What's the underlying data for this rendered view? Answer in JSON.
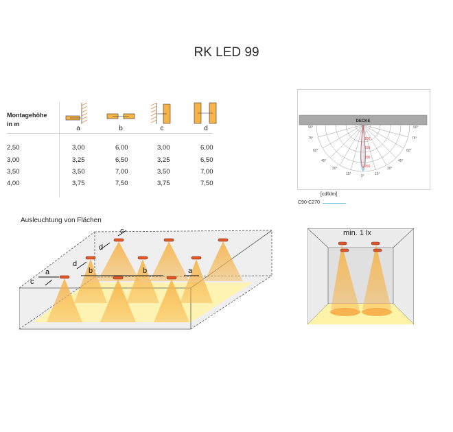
{
  "title": "RK LED 99",
  "table": {
    "header_label_line1": "Montagehöhe",
    "header_label_line2": "in m",
    "columns": [
      "a",
      "b",
      "c",
      "d"
    ],
    "rows": [
      {
        "height": "2,50",
        "a": "3,00",
        "b": "6,00",
        "c": "3,00",
        "d": "6,00"
      },
      {
        "height": "3,00",
        "a": "3,25",
        "b": "6,50",
        "c": "3,25",
        "d": "6,50"
      },
      {
        "height": "3,50",
        "a": "3,50",
        "b": "7,00",
        "c": "3,50",
        "d": "7,00"
      },
      {
        "height": "4,00",
        "a": "3,75",
        "b": "7,50",
        "c": "3,75",
        "d": "7,50"
      }
    ]
  },
  "polar": {
    "ceiling_label": "DECKE",
    "unit_label": "[cd/klm]",
    "curve_label": "C90-C270",
    "ring_values": [
      "100",
      "150",
      "200",
      "250"
    ],
    "angle_labels": [
      "90°",
      "75°",
      "60°",
      "45°",
      "30°",
      "15°",
      "0°",
      "15°",
      "30°",
      "45°",
      "60°",
      "75°",
      "90°"
    ],
    "curve_color": "#6cc3e8"
  },
  "illumination": {
    "section_title": "Ausleuchtung von Flächen",
    "letters": [
      "c",
      "d",
      "d",
      "a",
      "c",
      "b",
      "b",
      "a"
    ],
    "min_label": "min. 1 lx"
  },
  "colors": {
    "lamp": "#e0582a",
    "cone": "#f6b347",
    "floor": "#fff2b0",
    "box": "#e6e6e6"
  }
}
